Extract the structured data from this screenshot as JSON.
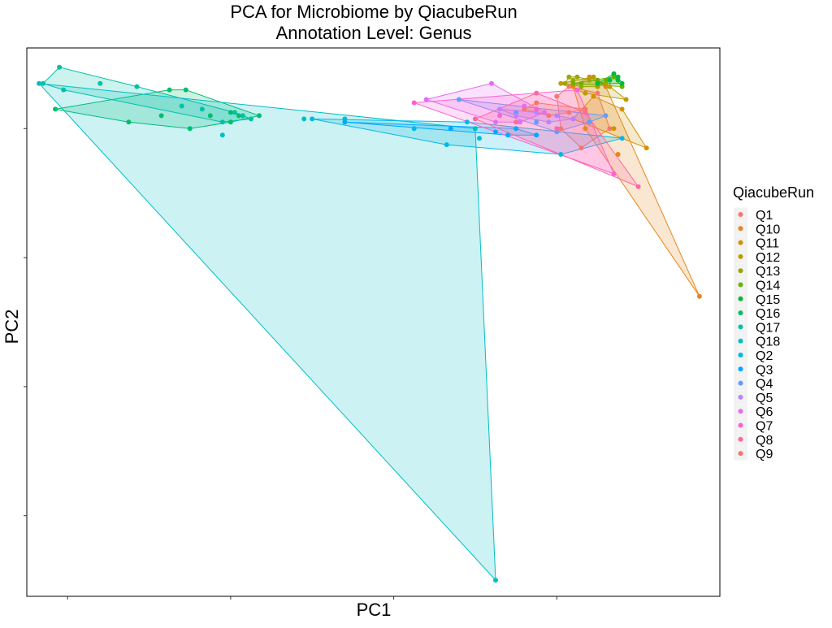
{
  "chart_data": {
    "type": "scatter",
    "title": "PCA for Microbiome by QiacubeRun",
    "subtitle": "Annotation Level: Genus",
    "xlabel": "PC1",
    "ylabel": "PC2",
    "x_tick_labels_visible": false,
    "y_tick_labels_visible": false,
    "grid": false,
    "legend": {
      "title": "QiacubeRun",
      "position": "right"
    },
    "hulls": true,
    "series": [
      {
        "name": "Q1",
        "color": "#F8766D",
        "points": [
          [
            0.6,
            0.7
          ],
          [
            0.66,
            0.54
          ],
          [
            0.73,
            0.6
          ],
          [
            0.7,
            0.71
          ],
          [
            0.63,
            0.73
          ],
          [
            0.61,
            0.6
          ]
        ]
      },
      {
        "name": "Q10",
        "color": "#E7861B",
        "points": [
          [
            0.95,
            0.08
          ],
          [
            0.72,
            0.73
          ],
          [
            0.68,
            0.76
          ],
          [
            0.64,
            0.73
          ],
          [
            0.67,
            0.6
          ],
          [
            0.75,
            0.52
          ]
        ]
      },
      {
        "name": "Q11",
        "color": "#D39200",
        "points": [
          [
            0.82,
            0.54
          ],
          [
            0.64,
            0.63
          ],
          [
            0.69,
            0.7
          ],
          [
            0.76,
            0.66
          ],
          [
            0.74,
            0.6
          ]
        ]
      },
      {
        "name": "Q12",
        "color": "#BB9D00",
        "points": [
          [
            0.77,
            0.69
          ],
          [
            0.61,
            0.74
          ],
          [
            0.69,
            0.76
          ],
          [
            0.73,
            0.73
          ],
          [
            0.67,
            0.71
          ]
        ]
      },
      {
        "name": "Q13",
        "color": "#9CA700",
        "points": [
          [
            0.63,
            0.76
          ],
          [
            0.65,
            0.76
          ],
          [
            0.68,
            0.75
          ],
          [
            0.7,
            0.73
          ],
          [
            0.72,
            0.74
          ],
          [
            0.66,
            0.73
          ],
          [
            0.62,
            0.74
          ],
          [
            0.64,
            0.75
          ]
        ]
      },
      {
        "name": "Q14",
        "color": "#6BB100",
        "points": [
          [
            0.64,
            0.74
          ],
          [
            0.74,
            0.76
          ],
          [
            0.76,
            0.73
          ],
          [
            0.7,
            0.75
          ],
          [
            0.66,
            0.74
          ],
          [
            0.72,
            0.75
          ]
        ]
      },
      {
        "name": "Q15",
        "color": "#00BA38",
        "points": [
          [
            0.74,
            0.77
          ],
          [
            0.75,
            0.76
          ],
          [
            0.76,
            0.74
          ],
          [
            0.73,
            0.75
          ],
          [
            0.7,
            0.74
          ],
          [
            0.75,
            0.75
          ]
        ]
      },
      {
        "name": "Q16",
        "color": "#00BE6C",
        "points": [
          [
            -0.63,
            0.66
          ],
          [
            -0.31,
            0.72
          ],
          [
            -0.13,
            0.64
          ],
          [
            -0.2,
            0.62
          ],
          [
            -0.3,
            0.6
          ],
          [
            -0.45,
            0.62
          ],
          [
            -0.37,
            0.64
          ],
          [
            -0.2,
            0.65
          ],
          [
            -0.35,
            0.72
          ],
          [
            -0.25,
            0.64
          ],
          [
            -0.18,
            0.64
          ]
        ]
      },
      {
        "name": "Q17",
        "color": "#00C1A7",
        "points": [
          [
            -0.62,
            0.79
          ],
          [
            -0.66,
            0.74
          ],
          [
            -0.61,
            0.72
          ],
          [
            -0.52,
            0.74
          ],
          [
            -0.43,
            0.73
          ],
          [
            -0.19,
            0.65
          ],
          [
            -0.17,
            0.64
          ],
          [
            -0.15,
            0.63
          ],
          [
            -0.27,
            0.66
          ],
          [
            -0.32,
            0.67
          ],
          [
            -0.22,
            0.62
          ]
        ]
      },
      {
        "name": "Q18",
        "color": "#00BFC4",
        "points": [
          [
            -0.67,
            0.74
          ],
          [
            0.45,
            -0.8
          ],
          [
            0.4,
            0.6
          ],
          [
            -0.02,
            0.63
          ],
          [
            0.08,
            0.63
          ],
          [
            -0.22,
            0.58
          ]
        ]
      },
      {
        "name": "Q2",
        "color": "#00B8E7",
        "points": [
          [
            0.0,
            0.63
          ],
          [
            0.25,
            0.6
          ],
          [
            0.33,
            0.55
          ],
          [
            0.61,
            0.52
          ],
          [
            0.76,
            0.57
          ],
          [
            0.41,
            0.57
          ],
          [
            0.38,
            0.62
          ]
        ]
      },
      {
        "name": "Q3",
        "color": "#00A9FF",
        "points": [
          [
            0.08,
            0.62
          ],
          [
            0.34,
            0.6
          ],
          [
            0.48,
            0.58
          ],
          [
            0.55,
            0.58
          ],
          [
            0.45,
            0.59
          ],
          [
            0.5,
            0.6
          ]
        ]
      },
      {
        "name": "Q4",
        "color": "#619CFF",
        "points": [
          [
            0.36,
            0.69
          ],
          [
            0.6,
            0.59
          ],
          [
            0.68,
            0.62
          ],
          [
            0.72,
            0.64
          ],
          [
            0.55,
            0.62
          ],
          [
            0.5,
            0.65
          ]
        ]
      },
      {
        "name": "Q5",
        "color": "#B983FF",
        "points": [
          [
            0.46,
            0.66
          ],
          [
            0.58,
            0.62
          ],
          [
            0.64,
            0.63
          ],
          [
            0.55,
            0.65
          ],
          [
            0.5,
            0.64
          ],
          [
            0.6,
            0.64
          ]
        ]
      },
      {
        "name": "Q6",
        "color": "#E76BF3",
        "points": [
          [
            0.28,
            0.69
          ],
          [
            0.44,
            0.74
          ],
          [
            0.52,
            0.67
          ],
          [
            0.57,
            0.65
          ],
          [
            0.51,
            0.62
          ],
          [
            0.45,
            0.62
          ]
        ]
      },
      {
        "name": "Q7",
        "color": "#FD61D1",
        "points": [
          [
            0.25,
            0.68
          ],
          [
            0.74,
            0.46
          ],
          [
            0.65,
            0.72
          ],
          [
            0.55,
            0.66
          ],
          [
            0.46,
            0.64
          ],
          [
            0.4,
            0.63
          ]
        ]
      },
      {
        "name": "Q8",
        "color": "#FF67A4",
        "points": [
          [
            0.8,
            0.42
          ],
          [
            0.4,
            0.63
          ],
          [
            0.55,
            0.71
          ],
          [
            0.67,
            0.65
          ],
          [
            0.6,
            0.6
          ],
          [
            0.5,
            0.62
          ]
        ]
      },
      {
        "name": "Q9",
        "color": "#F8766D",
        "points": [
          [
            0.55,
            0.68
          ],
          [
            0.67,
            0.66
          ],
          [
            0.63,
            0.65
          ],
          [
            0.58,
            0.64
          ],
          [
            0.52,
            0.66
          ]
        ]
      }
    ],
    "xlim": [
      -0.7,
      1.0
    ],
    "ylim": [
      -0.85,
      0.85
    ]
  }
}
